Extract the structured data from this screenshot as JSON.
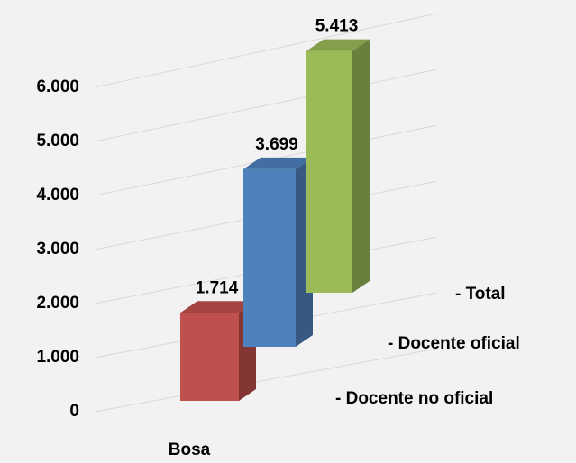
{
  "chart_data": {
    "type": "bar3d",
    "categories": [
      "Bosa"
    ],
    "series": [
      {
        "name": "- Docente no oficial",
        "color": "#c0504d",
        "values": [
          1714
        ],
        "value_labels": [
          "1.714"
        ]
      },
      {
        "name": "- Docente oficial",
        "color": "#4f81bd",
        "values": [
          3699
        ],
        "value_labels": [
          "3.699"
        ]
      },
      {
        "name": "- Total",
        "color": "#9bbb59",
        "values": [
          5413
        ],
        "value_labels": [
          "5.413"
        ]
      }
    ],
    "ylim": [
      0,
      6000
    ],
    "yticks": [
      {
        "value": 0,
        "label": "0"
      },
      {
        "value": 1000,
        "label": "1.000"
      },
      {
        "value": 2000,
        "label": "2.000"
      },
      {
        "value": 3000,
        "label": "3.000"
      },
      {
        "value": 4000,
        "label": "4.000"
      },
      {
        "value": 5000,
        "label": "5.000"
      },
      {
        "value": 6000,
        "label": "6.000"
      }
    ],
    "grid": true
  }
}
